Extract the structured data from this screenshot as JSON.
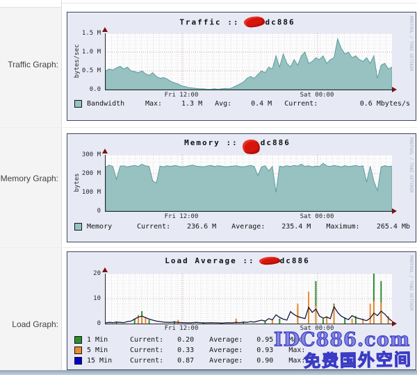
{
  "sidebar": {
    "rows": [
      {
        "label": "Traffic Graph:"
      },
      {
        "label": "Memory Graph:"
      },
      {
        "label": "Load Graph:"
      }
    ]
  },
  "watermarks": {
    "rrdtool": "RRDTOOL / TOBI OETIKER",
    "site": "IDC886.com",
    "site_cn": "免费国外空间"
  },
  "chart_data": [
    {
      "type": "area",
      "title": "Traffic :: dc886",
      "title_left": "Traffic ::",
      "host": "dc886",
      "host_prefix_redacted": true,
      "ylabel": "bytes/sec",
      "ylim": [
        0,
        1.5
      ],
      "yticks": [
        "1.5 M",
        "1.0 M",
        "0.5 M",
        "0.0"
      ],
      "xticks": [
        {
          "label": "Fri 12:00",
          "pos": 0.267
        },
        {
          "label": "Sat 00:00",
          "pos": 0.74
        }
      ],
      "series": [
        {
          "name": "Bandwidth",
          "type": "area",
          "color": "#98c1c1",
          "stroke": "#5d9c9c",
          "values": [
            0.5,
            0.55,
            0.52,
            0.58,
            0.62,
            0.55,
            0.6,
            0.5,
            0.48,
            0.45,
            0.5,
            0.42,
            0.38,
            0.45,
            0.35,
            0.3,
            0.32,
            0.28,
            0.22,
            0.18,
            0.15,
            0.1,
            0.08,
            0.05,
            0.04,
            0.03,
            0.02,
            0.02,
            0.01,
            0.01,
            0.02,
            0.01,
            0.02,
            0.03,
            0.02,
            0.05,
            0.1,
            0.15,
            0.2,
            0.3,
            0.35,
            0.3,
            0.4,
            0.5,
            0.45,
            0.6,
            0.55,
            0.9,
            0.6,
            0.95,
            0.7,
            0.6,
            0.8,
            0.65,
            0.9,
            1.0,
            0.7,
            0.75,
            0.85,
            0.8,
            0.9,
            0.7,
            0.8,
            0.85,
            1.35,
            1.1,
            0.95,
            1.0,
            0.85,
            0.9,
            0.8,
            0.75,
            0.85,
            0.7,
            0.9,
            0.3,
            0.65,
            0.7,
            0.55,
            0.6
          ]
        }
      ],
      "legend": {
        "name": "Bandwidth",
        "max_label": "Max:",
        "max": "1.3 M",
        "avg_label": "Avg:",
        "avg": "0.4 M",
        "cur_label": "Current:",
        "cur": "0.6 Mbytes/s"
      }
    },
    {
      "type": "area",
      "title": "Memory :: dc886",
      "title_left": "Memory ::",
      "host": "dc886",
      "host_prefix_redacted": true,
      "ylabel": "bytes",
      "ylim": [
        0,
        300
      ],
      "yticks": [
        "300 M",
        "200 M",
        "100 M",
        "0"
      ],
      "xticks": [
        {
          "label": "Fri 12:00",
          "pos": 0.267
        },
        {
          "label": "Sat 00:00",
          "pos": 0.74
        }
      ],
      "series": [
        {
          "name": "Memory",
          "type": "area",
          "color": "#98c1c1",
          "stroke": "#5d9c9c",
          "values": [
            235,
            245,
            238,
            170,
            240,
            242,
            236,
            240,
            244,
            238,
            250,
            242,
            238,
            160,
            150,
            240,
            236,
            242,
            238,
            244,
            240,
            236,
            238,
            242,
            246,
            240,
            238,
            236,
            240,
            244,
            238,
            242,
            240,
            236,
            238,
            240,
            242,
            238,
            236,
            240,
            244,
            238,
            190,
            236,
            242,
            215,
            238,
            100,
            240,
            236,
            242,
            238,
            244,
            240,
            250,
            238,
            242,
            236,
            240,
            238,
            255,
            242,
            238,
            244,
            240,
            236,
            242,
            238,
            240,
            244,
            238,
            242,
            155,
            240,
            160,
            110,
            236,
            242,
            238,
            240
          ]
        }
      ],
      "legend": {
        "name": "Memory",
        "cur_label": "Current:",
        "cur": "236.6 M",
        "avg_label": "Average:",
        "avg": "235.4 M",
        "max_label": "Maximum:",
        "max": "265.4 Mb"
      }
    },
    {
      "type": "mixed",
      "title": "Load Average :: dc886",
      "title_left": "Load Average ::",
      "host": "dc886",
      "host_prefix_redacted": true,
      "ylabel": "",
      "ylim": [
        0,
        20
      ],
      "yticks": [
        "20",
        "10",
        "0"
      ],
      "xticks": [
        {
          "label": "Fri 12:00",
          "pos": 0.267
        },
        {
          "label": "Sat 00:00",
          "pos": 0.74
        }
      ],
      "series": [
        {
          "name": "1 Min",
          "type": "impulse",
          "color": "#2c8f2c",
          "values": [
            0,
            0,
            0,
            0.8,
            0,
            0,
            0,
            0,
            2,
            0,
            5,
            0,
            1.5,
            0,
            0,
            0,
            0,
            0,
            0,
            1,
            0,
            0,
            0,
            0,
            0,
            0,
            0,
            0.5,
            0,
            0,
            0,
            0,
            0,
            0,
            0,
            0,
            0,
            0,
            0.8,
            0,
            0,
            0,
            0,
            0,
            1.2,
            0,
            0,
            0,
            2,
            0,
            0,
            0,
            0,
            6.5,
            0,
            0,
            7,
            0,
            17,
            0,
            2,
            0,
            0,
            8,
            0,
            0,
            2.5,
            0,
            0,
            3,
            0,
            0,
            0,
            0,
            20,
            0,
            17,
            0,
            2,
            0
          ]
        },
        {
          "name": "5 Min",
          "type": "impulse",
          "color": "#e88a2e",
          "values": [
            0,
            0,
            0,
            0,
            0,
            0,
            0,
            0,
            0,
            3.5,
            3,
            2.5,
            0,
            0,
            0,
            0,
            0,
            0,
            0,
            0,
            1.5,
            0,
            0,
            0,
            0,
            0,
            0,
            0,
            0,
            0,
            0,
            0,
            0,
            0,
            0,
            0,
            2,
            0,
            0,
            0,
            0,
            0,
            0,
            0,
            0,
            0,
            1.5,
            0,
            0,
            0,
            0,
            0,
            0,
            8,
            0,
            0,
            12.8,
            0,
            7,
            0,
            0,
            3,
            0,
            7.5,
            0,
            0,
            0,
            0,
            2,
            0,
            0,
            2,
            0,
            8,
            9,
            0,
            8.5,
            0,
            3,
            0
          ]
        },
        {
          "name": "15 Min",
          "type": "line",
          "color": "#16163f",
          "values": [
            0.3,
            0.5,
            0.4,
            0.6,
            0.5,
            0.4,
            0.8,
            1.0,
            1.8,
            2.6,
            3.0,
            2.4,
            1.8,
            1.4,
            1.0,
            0.8,
            0.6,
            0.5,
            0.5,
            0.6,
            0.5,
            0.4,
            0.4,
            0.3,
            0.4,
            0.5,
            0.4,
            0.3,
            0.3,
            0.4,
            0.3,
            0.3,
            0.2,
            0.3,
            0.4,
            0.3,
            0.5,
            0.4,
            0.6,
            0.5,
            0.8,
            0.6,
            1.0,
            1.4,
            1.0,
            2.0,
            1.5,
            3.5,
            2.5,
            1.8,
            1.4,
            4.8,
            3.6,
            2.8,
            2.4,
            2.0,
            6.5,
            4.5,
            5.8,
            3.0,
            2.2,
            2.6,
            2.0,
            6.8,
            4.5,
            3.0,
            2.2,
            1.6,
            3.2,
            2.4,
            2.0,
            1.6,
            1.2,
            2.2,
            4.2,
            3.2,
            5.0,
            3.8,
            2.2,
            1.0
          ]
        }
      ],
      "legend": {
        "rows": [
          {
            "swatch": "#2c8f2c",
            "label": "1 Min",
            "cur_label": "Current:",
            "cur": "0.20",
            "avg_label": "Average:",
            "avg": "0.95",
            "max_label": "Max:",
            "max": ""
          },
          {
            "swatch": "#e88a2e",
            "label": "5 Min",
            "cur_label": "Current:",
            "cur": "0.33",
            "avg_label": "Average:",
            "avg": "0.93",
            "max_label": "Max:",
            "max": ""
          },
          {
            "swatch": "#0000cc",
            "label": "15 Min",
            "cur_label": "Current:",
            "cur": "0.87",
            "avg_label": "Average:",
            "avg": "0.90",
            "max_label": "Max:",
            "max": ""
          }
        ]
      }
    }
  ]
}
